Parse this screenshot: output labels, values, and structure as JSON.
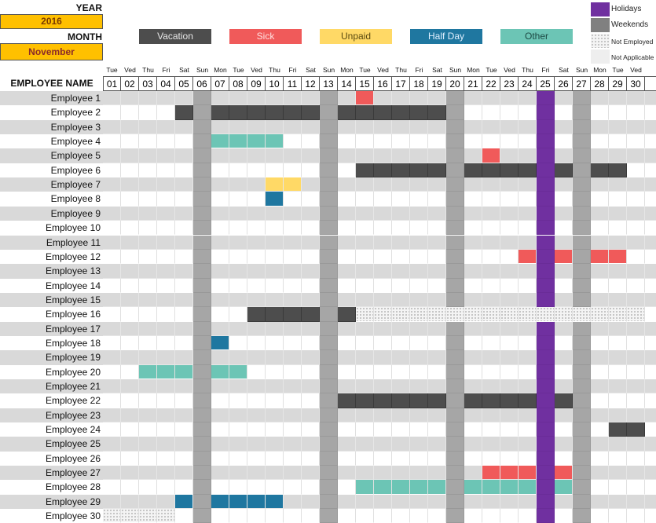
{
  "header": {
    "year_label": "YEAR",
    "year_value": "2016",
    "month_label": "MONTH",
    "month_value": "November",
    "employee_name_header": "EMPLOYEE NAME"
  },
  "legend": [
    {
      "key": "vacation",
      "label": "Vacation",
      "color": "#4d4d4d",
      "text": "#e8e8e8"
    },
    {
      "key": "sick",
      "label": "Sick",
      "color": "#f05a5a",
      "text": "#ffe0e0"
    },
    {
      "key": "unpaid",
      "label": "Unpaid",
      "color": "#ffd966",
      "text": "#5a4a10"
    },
    {
      "key": "halfday",
      "label": "Half Day",
      "color": "#1f77a0",
      "text": "#e0f0ff"
    },
    {
      "key": "other",
      "label": "Other",
      "color": "#6cc5b5",
      "text": "#1d4a44"
    }
  ],
  "side_legend": [
    {
      "key": "holiday",
      "label": "Holidays",
      "color": "#7030a0"
    },
    {
      "key": "weekend",
      "label": "Weekends",
      "color": "#808080"
    },
    {
      "key": "not_employed",
      "label": "Not Employed",
      "color": "dotted"
    },
    {
      "key": "not_applicable",
      "label": "Not Applicable",
      "color": "#eeeeee"
    }
  ],
  "days": [
    "01",
    "02",
    "03",
    "04",
    "05",
    "06",
    "07",
    "08",
    "09",
    "10",
    "11",
    "12",
    "13",
    "14",
    "15",
    "16",
    "17",
    "18",
    "19",
    "20",
    "21",
    "22",
    "23",
    "24",
    "25",
    "26",
    "27",
    "28",
    "29",
    "30"
  ],
  "weekdays": [
    "Tue",
    "Ved",
    "Thu",
    "Fri",
    "Sat",
    "Sun",
    "Mon",
    "Tue",
    "Ved",
    "Thu",
    "Fri",
    "Sat",
    "Sun",
    "Mon",
    "Tue",
    "Ved",
    "Thu",
    "Fri",
    "Sat",
    "Sun",
    "Mon",
    "Tue",
    "Ved",
    "Thu",
    "Fri",
    "Sat",
    "Sun",
    "Mon",
    "Tue",
    "Ved"
  ],
  "weekend_days": [
    6,
    13,
    20,
    27
  ],
  "holiday_days": [
    25
  ],
  "employees": [
    {
      "name": "Employee 1",
      "marks": {
        "sick": [
          15
        ]
      }
    },
    {
      "name": "Employee 2",
      "marks": {
        "vacation": [
          5,
          7,
          8,
          9,
          10,
          11,
          12,
          14,
          15,
          16,
          17,
          18,
          19
        ]
      }
    },
    {
      "name": "Employee 3",
      "marks": {}
    },
    {
      "name": "Employee 4",
      "marks": {
        "other": [
          7,
          8,
          9,
          10
        ]
      }
    },
    {
      "name": "Employee 5",
      "marks": {
        "sick": [
          22
        ]
      }
    },
    {
      "name": "Employee 6",
      "marks": {
        "vacation": [
          15,
          16,
          17,
          18,
          19,
          21,
          22,
          23,
          24,
          26,
          28,
          29
        ]
      }
    },
    {
      "name": "Employee 7",
      "marks": {
        "unpaid": [
          10,
          11
        ]
      }
    },
    {
      "name": "Employee 8",
      "marks": {
        "halfday": [
          10
        ]
      }
    },
    {
      "name": "Employee 9",
      "marks": {}
    },
    {
      "name": "Employee 10",
      "marks": {}
    },
    {
      "name": "Employee 11",
      "marks": {}
    },
    {
      "name": "Employee 12",
      "marks": {
        "sick": [
          24,
          26,
          28,
          29
        ]
      }
    },
    {
      "name": "Employee 13",
      "marks": {}
    },
    {
      "name": "Employee 14",
      "marks": {}
    },
    {
      "name": "Employee 15",
      "marks": {}
    },
    {
      "name": "Employee 16",
      "marks": {
        "vacation": [
          9,
          10,
          11,
          12,
          14
        ],
        "not_employed": [
          15,
          16,
          17,
          18,
          19,
          20,
          21,
          22,
          23,
          24,
          25,
          26,
          27,
          28,
          29,
          30
        ]
      }
    },
    {
      "name": "Employee 17",
      "marks": {}
    },
    {
      "name": "Employee 18",
      "marks": {
        "halfday": [
          7
        ]
      }
    },
    {
      "name": "Employee 19",
      "marks": {}
    },
    {
      "name": "Employee 20",
      "marks": {
        "other": [
          3,
          4,
          5,
          7,
          8
        ]
      }
    },
    {
      "name": "Employee 21",
      "marks": {}
    },
    {
      "name": "Employee 22",
      "marks": {
        "vacation": [
          14,
          15,
          16,
          17,
          18,
          19,
          21,
          22,
          23,
          24,
          26
        ]
      }
    },
    {
      "name": "Employee 23",
      "marks": {}
    },
    {
      "name": "Employee 24",
      "marks": {
        "vacation": [
          29,
          30
        ]
      }
    },
    {
      "name": "Employee 25",
      "marks": {}
    },
    {
      "name": "Employee 26",
      "marks": {}
    },
    {
      "name": "Employee 27",
      "marks": {
        "sick": [
          22,
          23,
          24,
          26
        ]
      }
    },
    {
      "name": "Employee 28",
      "marks": {
        "other": [
          15,
          16,
          17,
          18,
          19,
          21,
          22,
          23,
          24,
          26
        ]
      }
    },
    {
      "name": "Employee 29",
      "marks": {
        "halfday": [
          5,
          7,
          8,
          9,
          10
        ]
      }
    },
    {
      "name": "Employee 30",
      "marks": {
        "not_employed": [
          1,
          2,
          3,
          4
        ]
      }
    }
  ]
}
